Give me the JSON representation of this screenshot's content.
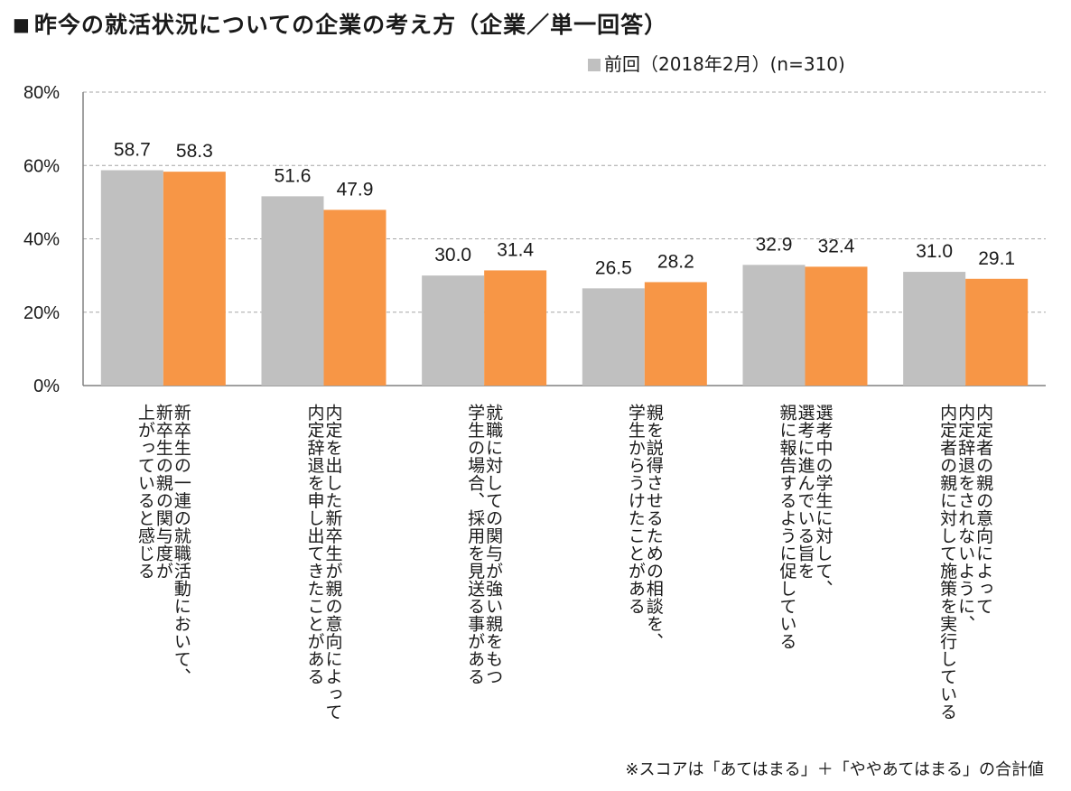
{
  "title_marker": "■",
  "title": "昨今の就活状況についての企業の考え方（企業／単一回答）",
  "footnote": "※スコアは「あてはまる」＋「ややあてはまる」の合計値",
  "colors": {
    "prev": "#c0c0c0",
    "current": "#f79646",
    "grid": "#a6a6a6",
    "axis": "#808080"
  },
  "chart_data": {
    "type": "bar",
    "orientation": "vertical",
    "ylim": [
      0,
      80
    ],
    "yticks": [
      0,
      20,
      40,
      60,
      80
    ],
    "ytick_labels": [
      "0%",
      "20%",
      "40%",
      "60%",
      "80%"
    ],
    "grid": "horizontal dashed",
    "legend_position": "top",
    "categories": [
      [
        "新卒生の一連の就職活動において、",
        "新卒生の親の関与度が",
        "上がっていると感じる"
      ],
      [
        "内定を出した新卒生が親の意向によって",
        "内定辞退を申し出てきたことがある"
      ],
      [
        "就職に対しての関与が強い親をもつ",
        "学生の場合、採用を見送る事がある"
      ],
      [
        "親を説得させるための相談を、",
        "学生からうけたことがある"
      ],
      [
        "選考中の学生に対して、",
        "選考に進んでいる旨を",
        "親に報告するように促している"
      ],
      [
        "内定者の親の意向によって",
        "内定辞退をされないように、",
        "内定者の親に対して施策を実行している"
      ]
    ],
    "series": [
      {
        "name": "前回（2018年2月）(n=310)",
        "color": "#c0c0c0",
        "values": [
          58.7,
          51.6,
          30.0,
          26.5,
          32.9,
          31.0
        ],
        "labels": [
          "58.7",
          "51.6",
          "30.0",
          "26.5",
          "32.9",
          "31.0"
        ]
      },
      {
        "color": "#f79646",
        "values": [
          58.3,
          47.9,
          31.4,
          28.2,
          32.4,
          29.1
        ],
        "labels": [
          "58.3",
          "47.9",
          "31.4",
          "28.2",
          "32.4",
          "29.1"
        ]
      }
    ]
  }
}
